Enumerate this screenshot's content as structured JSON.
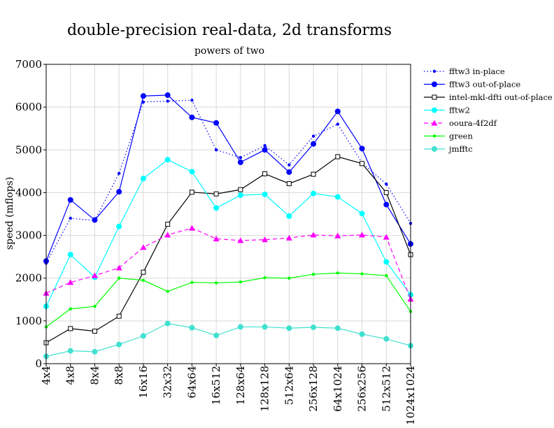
{
  "chart_data": {
    "type": "line",
    "title": "double-precision real-data, 2d transforms",
    "subtitle": "powers of two",
    "xlabel": "",
    "ylabel": "speed (mflops)",
    "ylim": [
      0,
      7000
    ],
    "yticks": [
      "0",
      "1000",
      "2000",
      "3000",
      "4000",
      "5000",
      "6000",
      "7000"
    ],
    "categories": [
      "4x4",
      "4x8",
      "8x4",
      "8x8",
      "16x16",
      "32x32",
      "64x64",
      "16x512",
      "128x64",
      "128x128",
      "512x64",
      "256x128",
      "64x1024",
      "256x256",
      "512x512",
      "1024x1024"
    ],
    "grid": true,
    "legend_position": "top-right",
    "series": [
      {
        "name": "fftw3 in-place",
        "color": "#0000ff",
        "style": "dotted",
        "marker": "small-dot",
        "values": [
          2350,
          3400,
          3350,
          4450,
          6120,
          6140,
          6160,
          5000,
          4820,
          5100,
          4650,
          5320,
          5600,
          4700,
          4200,
          3280
        ]
      },
      {
        "name": "fftw3 out-of-place",
        "color": "#0000ff",
        "style": "solid",
        "marker": "dot",
        "values": [
          2400,
          3830,
          3360,
          4020,
          6260,
          6280,
          5760,
          5630,
          4710,
          5000,
          4480,
          5140,
          5900,
          5030,
          3720,
          2800
        ]
      },
      {
        "name": "intel-mkl-dfti out-of-place",
        "color": "#000000",
        "style": "solid",
        "marker": "open-square",
        "values": [
          490,
          820,
          760,
          1110,
          2140,
          3260,
          4010,
          3970,
          4070,
          4440,
          4210,
          4430,
          4840,
          4680,
          4000,
          2550
        ]
      },
      {
        "name": "fftw2",
        "color": "#00ffff",
        "style": "solid",
        "marker": "dot",
        "values": [
          1340,
          2550,
          2020,
          3210,
          4330,
          4770,
          4490,
          3640,
          3940,
          3960,
          3450,
          3980,
          3900,
          3510,
          2380,
          1610
        ]
      },
      {
        "name": "ooura-4f2df",
        "color": "#ff00ff",
        "style": "dashed",
        "marker": "triangle",
        "values": [
          1650,
          1900,
          2060,
          2240,
          2720,
          3010,
          3170,
          2920,
          2880,
          2900,
          2940,
          3010,
          2990,
          3010,
          2960,
          1510
        ]
      },
      {
        "name": "green",
        "color": "#00ff00",
        "style": "solid",
        "marker": "small-dot",
        "values": [
          860,
          1280,
          1340,
          2000,
          1950,
          1690,
          1900,
          1890,
          1910,
          2010,
          2000,
          2090,
          2120,
          2100,
          2060,
          1220
        ]
      },
      {
        "name": "jmfftc",
        "color": "#40e0d0",
        "style": "solid",
        "marker": "dot",
        "values": [
          170,
          300,
          280,
          450,
          650,
          940,
          840,
          660,
          860,
          860,
          830,
          850,
          830,
          690,
          580,
          420
        ]
      }
    ]
  }
}
